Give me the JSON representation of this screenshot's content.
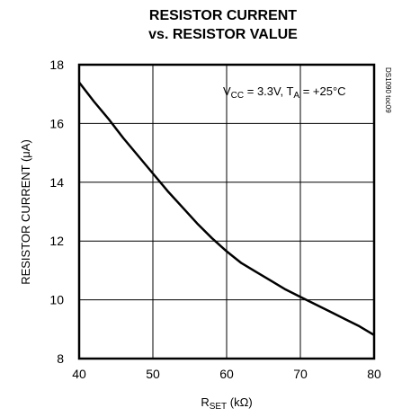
{
  "chart_data": {
    "type": "line",
    "title_line1": "RESISTOR CURRENT",
    "title_line2": "vs. RESISTOR VALUE",
    "xlabel": {
      "main": "R",
      "sub": "SET",
      "unit": " (kΩ)"
    },
    "ylabel": "RESISTOR CURRENT (μA)",
    "xlim": [
      40,
      80
    ],
    "ylim": [
      8,
      18
    ],
    "x_ticks": [
      "40",
      "50",
      "60",
      "70",
      "80"
    ],
    "y_ticks": [
      "8",
      "10",
      "12",
      "14",
      "16",
      "18"
    ],
    "grid": true,
    "annotation": {
      "p1": "V",
      "s1": "CC",
      "p2": " = 3.3V, T",
      "s2": "A",
      "p3": " = +25°C"
    },
    "side_label": "DS1090 toc09",
    "series": [
      {
        "color": "#000000",
        "x": [
          40,
          42,
          44,
          46,
          48,
          50,
          52,
          54,
          56,
          58,
          60,
          62,
          64,
          66,
          68,
          70,
          72,
          74,
          76,
          78,
          80
        ],
        "y": [
          17.4,
          16.75,
          16.15,
          15.5,
          14.9,
          14.3,
          13.7,
          13.15,
          12.6,
          12.1,
          11.65,
          11.25,
          10.95,
          10.65,
          10.35,
          10.1,
          9.85,
          9.6,
          9.35,
          9.1,
          8.8
        ]
      }
    ]
  }
}
